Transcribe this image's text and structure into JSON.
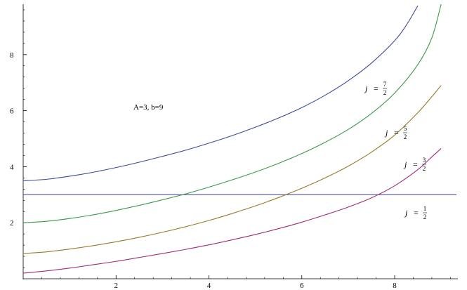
{
  "chart_data": {
    "type": "line",
    "title": "",
    "xlabel": "",
    "ylabel": "",
    "xlim": [
      0,
      9.3
    ],
    "ylim": [
      0,
      9.8
    ],
    "xticks": [
      2,
      4,
      6,
      8
    ],
    "yticks": [
      2,
      4,
      6,
      8
    ],
    "grid": false,
    "annotation": "A=3, b=9",
    "hline": {
      "y": 3,
      "color": "#3c3c8c"
    },
    "series": [
      {
        "label": {
          "j": "j",
          "eq": "=",
          "num": "7",
          "den": "2"
        },
        "color": "#3d4a9a",
        "points": [
          [
            0,
            3.5
          ],
          [
            0.5,
            3.55
          ],
          [
            1,
            3.66
          ],
          [
            1.5,
            3.8
          ],
          [
            2,
            3.97
          ],
          [
            2.5,
            4.16
          ],
          [
            3,
            4.37
          ],
          [
            3.5,
            4.59
          ],
          [
            4,
            4.84
          ],
          [
            4.5,
            5.11
          ],
          [
            5,
            5.41
          ],
          [
            5.5,
            5.74
          ],
          [
            6,
            6.11
          ],
          [
            6.5,
            6.55
          ],
          [
            7,
            7.07
          ],
          [
            7.5,
            7.7
          ],
          [
            8,
            8.5
          ],
          [
            8.25,
            9.05
          ],
          [
            8.5,
            9.75
          ]
        ]
      },
      {
        "label": {
          "j": "j",
          "eq": "=",
          "num": "5",
          "den": "2"
        },
        "color": "#3a9a4a",
        "points": [
          [
            0,
            2
          ],
          [
            0.5,
            2.05
          ],
          [
            1,
            2.15
          ],
          [
            1.5,
            2.28
          ],
          [
            2,
            2.44
          ],
          [
            2.5,
            2.62
          ],
          [
            3,
            2.82
          ],
          [
            3.5,
            3.03
          ],
          [
            4,
            3.27
          ],
          [
            4.5,
            3.53
          ],
          [
            5,
            3.81
          ],
          [
            5.5,
            4.12
          ],
          [
            6,
            4.47
          ],
          [
            6.5,
            4.87
          ],
          [
            7,
            5.33
          ],
          [
            7.5,
            5.9
          ],
          [
            8,
            6.63
          ],
          [
            8.5,
            7.65
          ],
          [
            8.8,
            8.6
          ],
          [
            9,
            9.8
          ]
        ]
      },
      {
        "label": {
          "j": "j",
          "eq": "=",
          "num": "3",
          "den": "2"
        },
        "color": "#9a7a2a",
        "points": [
          [
            0,
            0.9
          ],
          [
            0.5,
            0.96
          ],
          [
            1,
            1.06
          ],
          [
            1.5,
            1.18
          ],
          [
            2,
            1.32
          ],
          [
            2.5,
            1.48
          ],
          [
            3,
            1.66
          ],
          [
            3.5,
            1.86
          ],
          [
            4,
            2.08
          ],
          [
            4.5,
            2.33
          ],
          [
            5,
            2.6
          ],
          [
            5.5,
            2.9
          ],
          [
            6,
            3.23
          ],
          [
            6.5,
            3.6
          ],
          [
            7,
            4.02
          ],
          [
            7.5,
            4.52
          ],
          [
            8,
            5.13
          ],
          [
            8.5,
            5.93
          ],
          [
            8.8,
            6.5
          ],
          [
            9,
            6.9
          ]
        ]
      },
      {
        "label": {
          "j": "j",
          "eq": "=",
          "num": "1",
          "den": "2"
        },
        "color": "#a02a7a",
        "points": [
          [
            0,
            0.2
          ],
          [
            0.5,
            0.28
          ],
          [
            1,
            0.38
          ],
          [
            1.5,
            0.5
          ],
          [
            2,
            0.62
          ],
          [
            2.5,
            0.76
          ],
          [
            3,
            0.9
          ],
          [
            3.5,
            1.05
          ],
          [
            4,
            1.21
          ],
          [
            4.5,
            1.39
          ],
          [
            5,
            1.58
          ],
          [
            5.5,
            1.79
          ],
          [
            6,
            2.02
          ],
          [
            6.5,
            2.28
          ],
          [
            7,
            2.56
          ],
          [
            7.5,
            2.89
          ],
          [
            8,
            3.32
          ],
          [
            8.5,
            3.9
          ],
          [
            8.8,
            4.35
          ],
          [
            9,
            4.65
          ]
        ]
      }
    ]
  }
}
